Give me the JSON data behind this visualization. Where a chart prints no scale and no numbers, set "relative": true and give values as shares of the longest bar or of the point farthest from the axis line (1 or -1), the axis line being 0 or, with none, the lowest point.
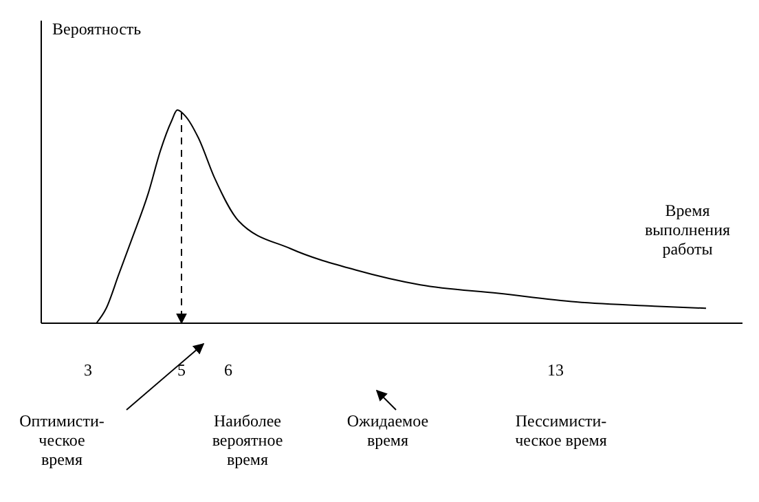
{
  "chart_data": {
    "type": "line",
    "relative": true,
    "ylabel": "Вероятность",
    "xlabel": "Время\nвыполнения\nработы",
    "xlim": [
      2,
      17
    ],
    "xticks": [
      3,
      5,
      6,
      13
    ],
    "grid": false,
    "marker": "none",
    "line_style": "solid",
    "x": [
      3.18,
      3.39,
      3.66,
      3.93,
      4.29,
      4.55,
      4.79,
      4.91,
      5.09,
      5.36,
      5.71,
      6.22,
      7.33,
      8.72,
      10.11,
      11.78,
      13.44,
      15.11,
      16.22
    ],
    "series": [
      {
        "color": "#000000",
        "values": [
          0,
          0.07,
          0.23,
          0.39,
          0.61,
          0.81,
          0.95,
          1,
          0.97,
          0.87,
          0.68,
          0.48,
          0.35,
          0.25,
          0.18,
          0.14,
          0.1,
          0.08,
          0.07
        ]
      }
    ],
    "ref_lines": [
      {
        "axis": "x",
        "value": 5,
        "line_style": "dashed",
        "color": "#000000"
      }
    ],
    "annotations": [
      "Оптимисти-\nческое\nвремя",
      "Наиболее\nвероятное\nвремя",
      "Ожидаемое\nвремя",
      "Пессимисти-\nческое время"
    ]
  }
}
